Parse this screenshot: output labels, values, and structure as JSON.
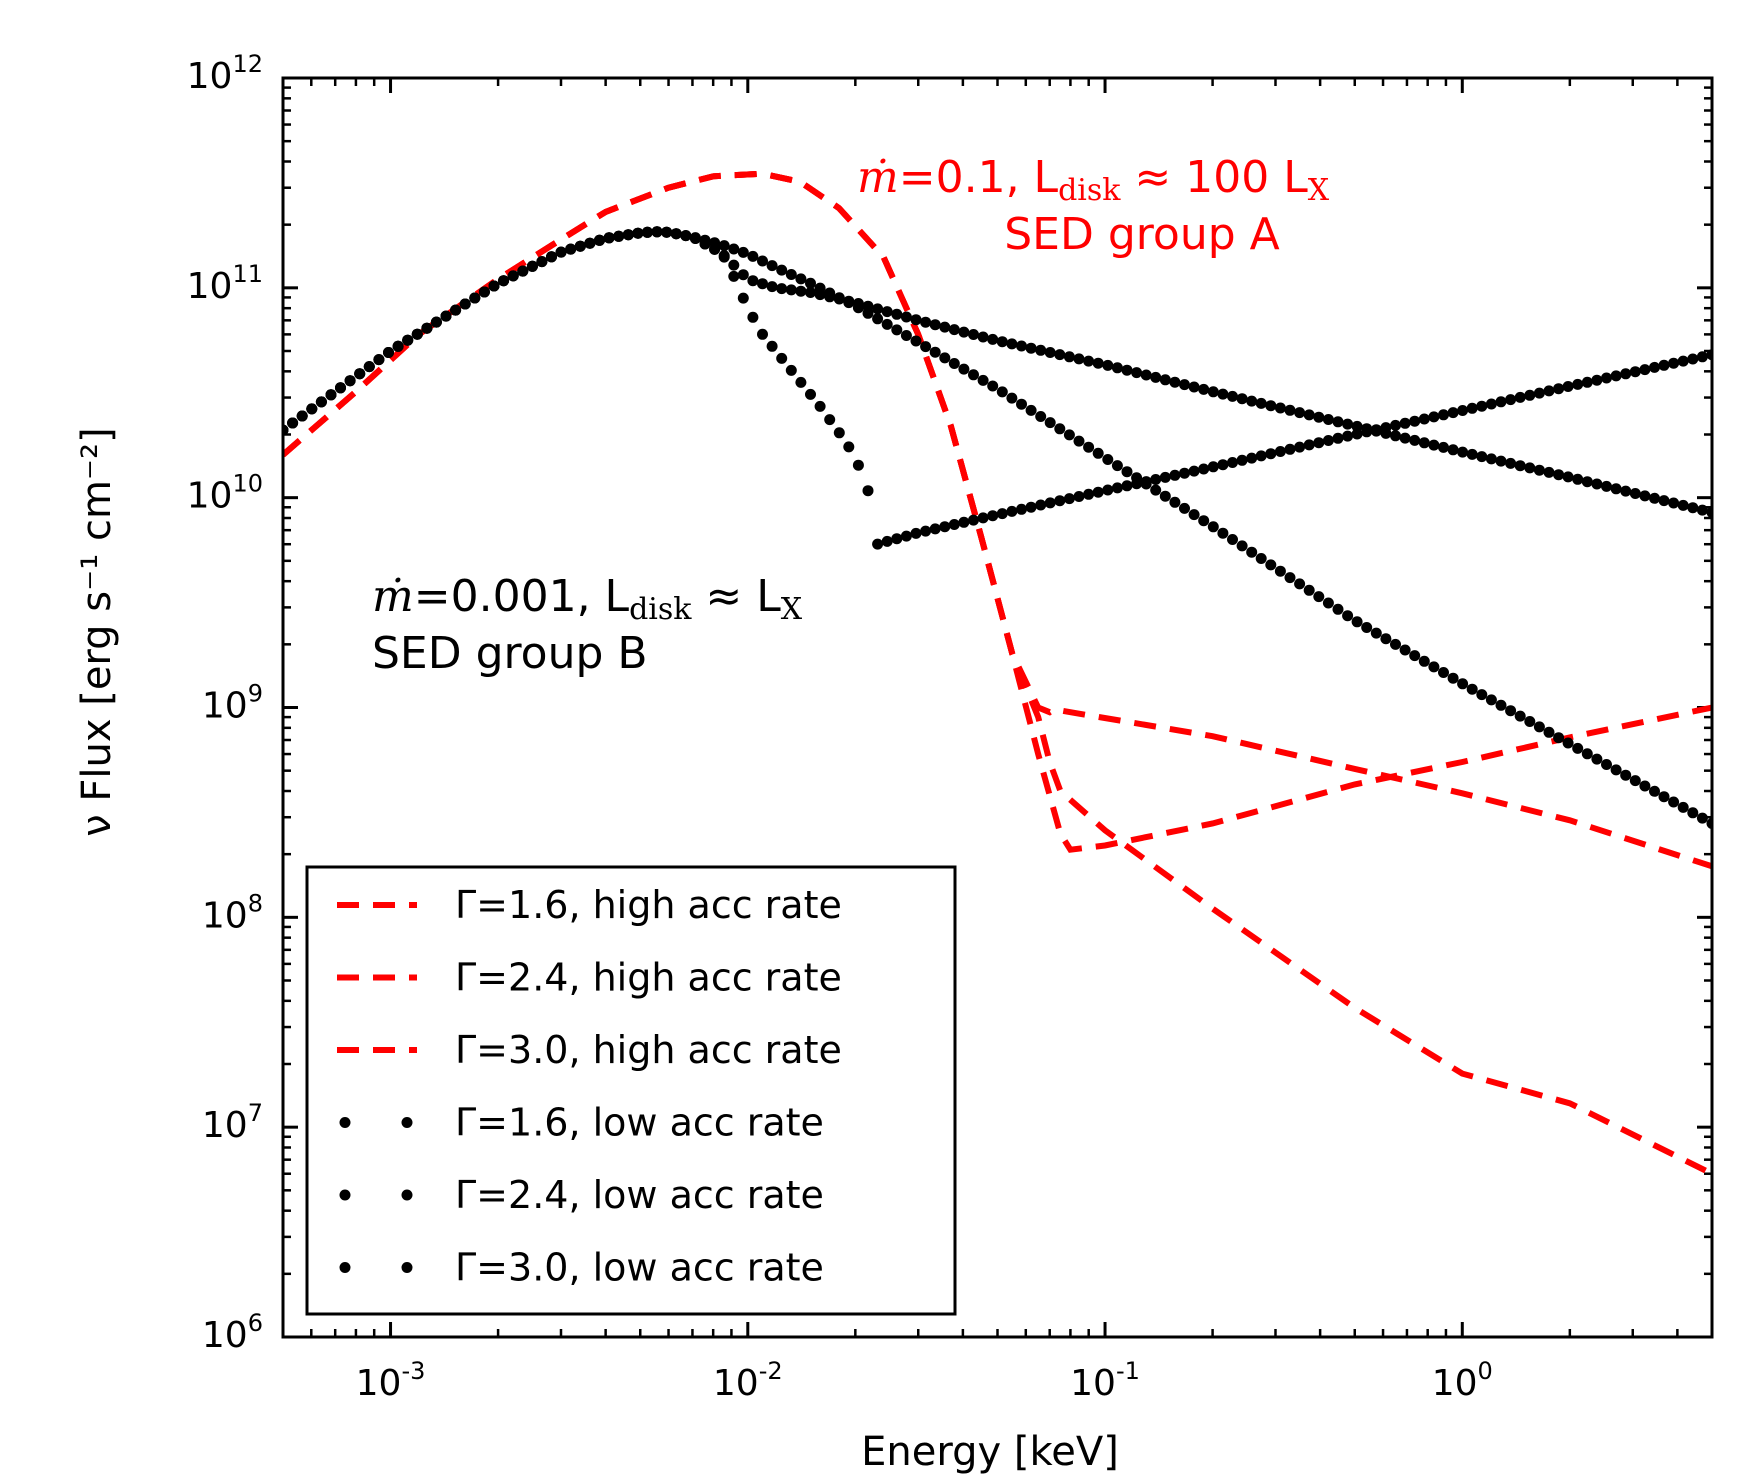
{
  "chart_data": {
    "type": "line",
    "xlabel": "Energy  [keV]",
    "ylabel": "ν Flux [erg s⁻¹ cm⁻²]",
    "xscale": "log",
    "yscale": "log",
    "xlim": [
      0.0005,
      5
    ],
    "ylim": [
      1000000.0,
      1000000000000.0
    ],
    "x_ticks": [
      {
        "value": 0.001,
        "base": "10",
        "exp": "-3"
      },
      {
        "value": 0.01,
        "base": "10",
        "exp": "-2"
      },
      {
        "value": 0.1,
        "base": "10",
        "exp": "-1"
      },
      {
        "value": 1,
        "base": "10",
        "exp": "0"
      }
    ],
    "y_ticks": [
      {
        "value": 1000000000000.0,
        "base": "10",
        "exp": "12"
      },
      {
        "value": 100000000000.0,
        "base": "10",
        "exp": "11"
      },
      {
        "value": 10000000000.0,
        "base": "10",
        "exp": "10"
      },
      {
        "value": 1000000000.0,
        "base": "10",
        "exp": "9"
      },
      {
        "value": 100000000.0,
        "base": "10",
        "exp": "8"
      },
      {
        "value": 10000000.0,
        "base": "10",
        "exp": "7"
      },
      {
        "value": 1000000.0,
        "base": "10",
        "exp": "6"
      }
    ],
    "grid": false,
    "legend_position": "bottom-left",
    "series": [
      {
        "name": "Γ=1.6, high acc rate",
        "style": "dashed",
        "color": "#ff0000",
        "x": [
          0.0005,
          0.0008,
          0.0012,
          0.002,
          0.003,
          0.004,
          0.006,
          0.008,
          0.011,
          0.014,
          0.018,
          0.024,
          0.03,
          0.037,
          0.045,
          0.055,
          0.065,
          0.07,
          0.072,
          0.08,
          0.2,
          0.5,
          1.0,
          2.0,
          5.0
        ],
        "y": [
          16000000000.0,
          32000000000.0,
          60000000000.0,
          110000000000.0,
          170000000000.0,
          230000000000.0,
          300000000000.0,
          340000000000.0,
          350000000000.0,
          320000000000.0,
          240000000000.0,
          140000000000.0,
          60000000000.0,
          22000000000.0,
          6500000000.0,
          1800000000.0,
          1000000000.0,
          950000000.0,
          980000000.0,
          950000000.0,
          730000000.0,
          510000000.0,
          390000000.0,
          290000000.0,
          175000000.0
        ]
      },
      {
        "name": "Γ=2.4, high acc rate",
        "style": "dashed",
        "color": "#ff0000",
        "x": [
          0.0005,
          0.0008,
          0.0012,
          0.002,
          0.003,
          0.004,
          0.006,
          0.008,
          0.011,
          0.014,
          0.018,
          0.024,
          0.03,
          0.037,
          0.045,
          0.055,
          0.065,
          0.075,
          0.08,
          0.1,
          0.2,
          0.5,
          1.0,
          2.0,
          5.0
        ],
        "y": [
          16000000000.0,
          32000000000.0,
          60000000000.0,
          110000000000.0,
          170000000000.0,
          230000000000.0,
          300000000000.0,
          340000000000.0,
          350000000000.0,
          320000000000.0,
          240000000000.0,
          140000000000.0,
          60000000000.0,
          22000000000.0,
          6500000000.0,
          1800000000.0,
          600000000.0,
          250000000.0,
          210000000.0,
          220000000.0,
          280000000.0,
          430000000.0,
          550000000.0,
          720000000.0,
          1000000000.0
        ]
      },
      {
        "name": "Γ=3.0, high acc rate",
        "style": "dashed",
        "color": "#ff0000",
        "x": [
          0.0005,
          0.0008,
          0.0012,
          0.002,
          0.003,
          0.004,
          0.006,
          0.008,
          0.011,
          0.014,
          0.018,
          0.024,
          0.03,
          0.037,
          0.045,
          0.055,
          0.065,
          0.07,
          0.075,
          0.1,
          0.2,
          0.5,
          1.0,
          2.0,
          5.0
        ],
        "y": [
          16000000000.0,
          32000000000.0,
          60000000000.0,
          110000000000.0,
          170000000000.0,
          230000000000.0,
          300000000000.0,
          340000000000.0,
          350000000000.0,
          320000000000.0,
          240000000000.0,
          140000000000.0,
          60000000000.0,
          22000000000.0,
          6500000000.0,
          1800000000.0,
          900000000.0,
          550000000.0,
          400000000.0,
          260000000.0,
          110000000.0,
          37000000.0,
          18000000.0,
          13000000.0,
          6000000.0
        ]
      },
      {
        "name": "Γ=1.6, low acc rate",
        "style": "dotted",
        "color": "#000000",
        "x_start": 0.0005,
        "x_end": 5.0,
        "n_points": 150,
        "x": [
          0.0005,
          0.001,
          0.002,
          0.003,
          0.004,
          0.005,
          0.0055,
          0.006,
          0.007,
          0.0085,
          0.009,
          0.01,
          0.011,
          0.013,
          0.016,
          0.019,
          0.021,
          0.022,
          0.023,
          0.03,
          0.05,
          0.1,
          0.2,
          0.5,
          1.0,
          2.0,
          5.0
        ],
        "y": [
          21000000000.0,
          50000000000.0,
          105000000000.0,
          148000000000.0,
          172000000000.0,
          183000000000.0,
          185000000000.0,
          184000000000.0,
          175000000000.0,
          145000000000.0,
          120000000000.0,
          80000000000.0,
          60000000000.0,
          42000000000.0,
          27000000000.0,
          18000000000.0,
          13000000000.0,
          10000000000.0,
          6000000000.0,
          6800000000.0,
          8300000000.0,
          10800000000.0,
          14000000000.0,
          20000000000.0,
          26000000000.0,
          34000000000.0,
          48000000000.0
        ]
      },
      {
        "name": "Γ=2.4, low acc rate",
        "style": "dotted",
        "color": "#000000",
        "x_start": 0.0005,
        "x_end": 5.0,
        "n_points": 150,
        "x": [
          0.0005,
          0.001,
          0.002,
          0.003,
          0.004,
          0.005,
          0.0055,
          0.006,
          0.007,
          0.0085,
          0.01,
          0.012,
          0.015,
          0.02,
          0.03,
          0.05,
          0.1,
          0.2,
          0.5,
          1.0,
          2.0,
          5.0
        ],
        "y": [
          21000000000.0,
          50000000000.0,
          105000000000.0,
          148000000000.0,
          172000000000.0,
          183000000000.0,
          185000000000.0,
          184000000000.0,
          175000000000.0,
          145000000000.0,
          110000000000.0,
          100000000000.0,
          95000000000.0,
          85000000000.0,
          70000000000.0,
          56000000000.0,
          43000000000.0,
          32000000000.0,
          22000000000.0,
          16500000000.0,
          12500000000.0,
          8500000000.0
        ]
      },
      {
        "name": "Γ=3.0, low acc rate",
        "style": "dotted",
        "color": "#000000",
        "x_start": 0.0005,
        "x_end": 5.0,
        "n_points": 150,
        "x": [
          0.0005,
          0.001,
          0.002,
          0.003,
          0.004,
          0.005,
          0.0055,
          0.006,
          0.007,
          0.0085,
          0.01,
          0.012,
          0.015,
          0.02,
          0.03,
          0.05,
          0.1,
          0.2,
          0.5,
          1.0,
          2.0,
          5.0
        ],
        "y": [
          21000000000.0,
          50000000000.0,
          105000000000.0,
          148000000000.0,
          172000000000.0,
          183000000000.0,
          185000000000.0,
          184000000000.0,
          175000000000.0,
          160000000000.0,
          145000000000.0,
          125000000000.0,
          105000000000.0,
          82000000000.0,
          55000000000.0,
          33000000000.0,
          15500000000.0,
          7300000000.0,
          2600000000.0,
          1300000000.0,
          670000000.0,
          280000000.0
        ]
      }
    ],
    "annotations": [
      {
        "color": "#ff0000",
        "line1": {
          "mdot": "ṁ",
          "text1": "=0.1, L",
          "sub1": "disk",
          "text2": " ≈  100 L",
          "sub2": "X"
        },
        "line2": "SED group A"
      },
      {
        "color": "#000000",
        "line1": {
          "mdot": "ṁ",
          "text1": "=0.001, L",
          "sub1": "disk",
          "text2": " ≈  L",
          "sub2": "X"
        },
        "line2": "SED group B"
      }
    ]
  }
}
